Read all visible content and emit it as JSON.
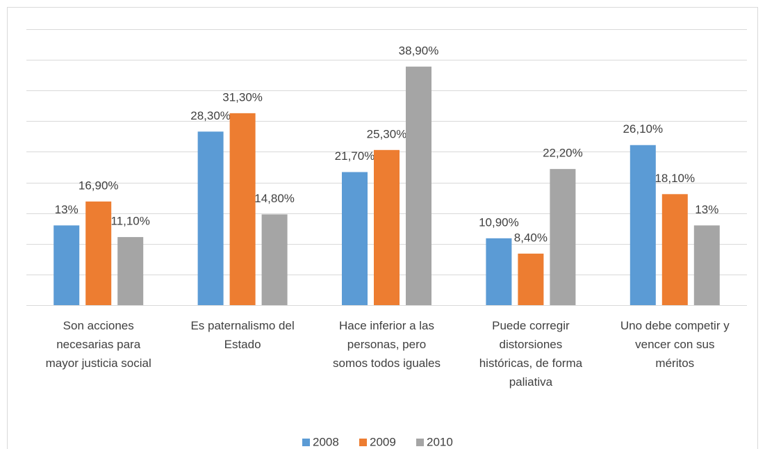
{
  "chart_data": {
    "type": "bar",
    "categories": [
      "Son acciones\nnecesarias para\nmayor justicia social",
      "Es paternalismo del\nEstado",
      "Hace inferior a las\npersonas, pero\nsomos todos iguales",
      "Puede corregir\ndistorsiones\nhistóricas, de forma\npaliativa",
      "Uno debe competir y\nvencer con sus\nméritos"
    ],
    "series": [
      {
        "name": "2008",
        "color": "#5b9bd5",
        "values": [
          13,
          28.3,
          21.7,
          10.9,
          26.1
        ],
        "value_labels": [
          "13%",
          "28,30%",
          "21,70%",
          "10,90%",
          "26,10%"
        ]
      },
      {
        "name": "2009",
        "color": "#ed7d31",
        "values": [
          16.9,
          31.3,
          25.3,
          8.4,
          18.1
        ],
        "value_labels": [
          "16,90%",
          "31,30%",
          "25,30%",
          "8,40%",
          "18,10%"
        ]
      },
      {
        "name": "2010",
        "color": "#a5a5a5",
        "values": [
          11.1,
          14.8,
          38.9,
          22.2,
          13
        ],
        "value_labels": [
          "11,10%",
          "14,80%",
          "38,90%",
          "22,20%",
          "13%"
        ]
      }
    ],
    "ylim": [
      0,
      45
    ],
    "yticks": [
      0,
      5,
      10,
      15,
      20,
      25,
      30,
      35,
      40,
      45
    ],
    "grid": true,
    "legend": "bottom"
  }
}
